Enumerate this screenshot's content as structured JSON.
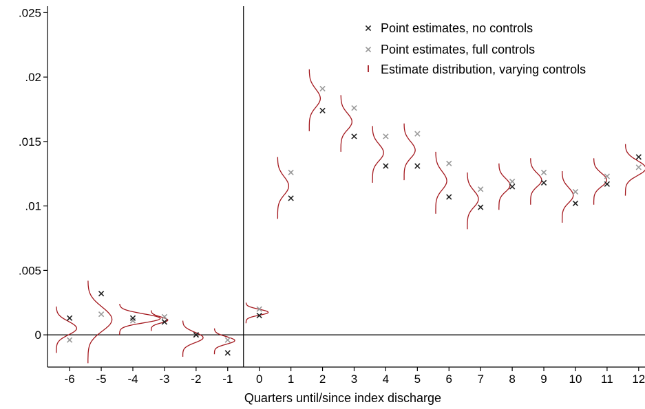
{
  "chart_data": {
    "type": "scatter",
    "xlabel": "Quarters until/since index discharge",
    "ylabel": "",
    "xlim": [
      -6.7,
      12.2
    ],
    "ylim": [
      -0.0025,
      0.0255
    ],
    "x_ticks": [
      -6,
      -5,
      -4,
      -3,
      -2,
      -1,
      0,
      1,
      2,
      3,
      4,
      5,
      6,
      7,
      8,
      9,
      10,
      11,
      12
    ],
    "y_ticks": [
      0,
      0.005,
      0.01,
      0.015,
      0.02,
      0.025
    ],
    "y_tick_labels": [
      "0",
      ".005",
      ".01",
      ".015",
      ".02",
      ".025"
    ],
    "reference_lines": {
      "x": -0.5,
      "y": 0
    },
    "grid": false,
    "legend": {
      "placement": "top-right",
      "entries": [
        "Point estimates, no controls",
        "Point estimates, full controls",
        "Estimate distribution, varying controls"
      ]
    },
    "series": [
      {
        "name": "Point estimates, no controls",
        "marker": "x",
        "color": "#222222",
        "x": [
          -6,
          -5,
          -4,
          -3,
          -2,
          -1,
          0,
          1,
          2,
          3,
          4,
          5,
          6,
          7,
          8,
          9,
          10,
          11,
          12
        ],
        "y": [
          0.0013,
          0.0032,
          0.0013,
          0.001,
          0.0,
          -0.0014,
          0.0015,
          0.0106,
          0.0174,
          0.0154,
          0.0131,
          0.0131,
          0.0107,
          0.0099,
          0.0115,
          0.0118,
          0.0102,
          0.0117,
          0.0138
        ]
      },
      {
        "name": "Point estimates, full controls",
        "marker": "x",
        "color": "#999999",
        "x": [
          -6,
          -5,
          -4,
          -3,
          -2,
          -1,
          0,
          1,
          2,
          3,
          4,
          5,
          6,
          7,
          8,
          9,
          10,
          11,
          12
        ],
        "y": [
          -0.0004,
          0.0016,
          0.0011,
          0.0014,
          0.0,
          -0.0004,
          0.002,
          0.0126,
          0.0191,
          0.0176,
          0.0154,
          0.0156,
          0.0133,
          0.0113,
          0.0119,
          0.0126,
          0.0111,
          0.0123,
          0.013
        ]
      },
      {
        "name": "Estimate distribution, varying controls",
        "marker": "density",
        "color": "#a3171d",
        "x": [
          -6,
          -5,
          -4,
          -3,
          -2,
          -1,
          0,
          1,
          2,
          3,
          4,
          5,
          6,
          7,
          8,
          9,
          10,
          11,
          12
        ],
        "center": [
          0.0004,
          0.001,
          0.0012,
          0.0011,
          -0.0003,
          -0.0005,
          0.0017,
          0.0114,
          0.0182,
          0.0164,
          0.014,
          0.0142,
          0.0118,
          0.0104,
          0.0115,
          0.0119,
          0.0107,
          0.0119,
          0.0128
        ],
        "spread": [
          0.0009,
          0.0016,
          0.0006,
          0.0004,
          0.0007,
          0.0005,
          0.0004,
          0.0012,
          0.0012,
          0.0011,
          0.0011,
          0.0011,
          0.0012,
          0.0011,
          0.0009,
          0.0009,
          0.001,
          0.0009,
          0.001
        ],
        "peak_height": [
          0.55,
          0.65,
          1.1,
          0.45,
          0.55,
          0.55,
          0.6,
          0.3,
          0.3,
          0.3,
          0.3,
          0.3,
          0.3,
          0.3,
          0.3,
          0.3,
          0.3,
          0.35,
          0.55
        ]
      }
    ]
  }
}
